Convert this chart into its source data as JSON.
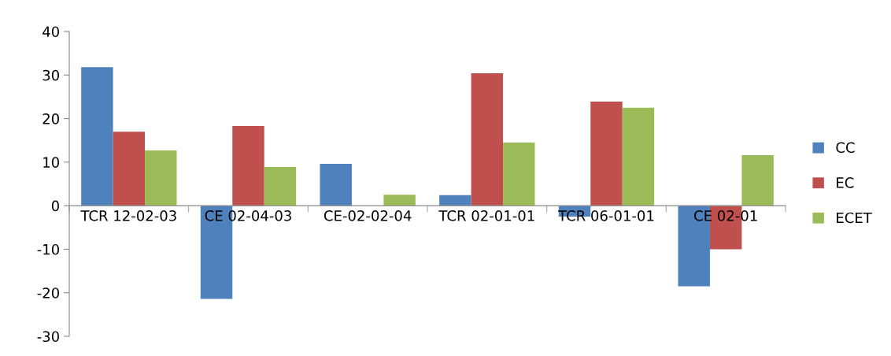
{
  "chart_data": {
    "type": "bar",
    "categories": [
      "TCR 12-02-03",
      "CE 02-04-03",
      "CE-02-02-04",
      "TCR 02-01-01",
      "TCR 06-01-01",
      "CE 02-01"
    ],
    "series": [
      {
        "name": "CC",
        "color": "#4f81bd",
        "values": [
          31.8,
          -21.4,
          9.6,
          2.4,
          -2.5,
          -18.5
        ]
      },
      {
        "name": "EC",
        "color": "#c0504d",
        "values": [
          17,
          18.3,
          null,
          30.4,
          23.9,
          -10
        ]
      },
      {
        "name": "ECET",
        "color": "#9bbb59",
        "values": [
          12.7,
          8.9,
          2.5,
          14.5,
          22.5,
          11.6
        ]
      }
    ],
    "ylim": [
      -30,
      40
    ],
    "yticks": [
      -30,
      -20,
      -10,
      0,
      10,
      20,
      30,
      40
    ],
    "grid": false,
    "legend": "right"
  }
}
